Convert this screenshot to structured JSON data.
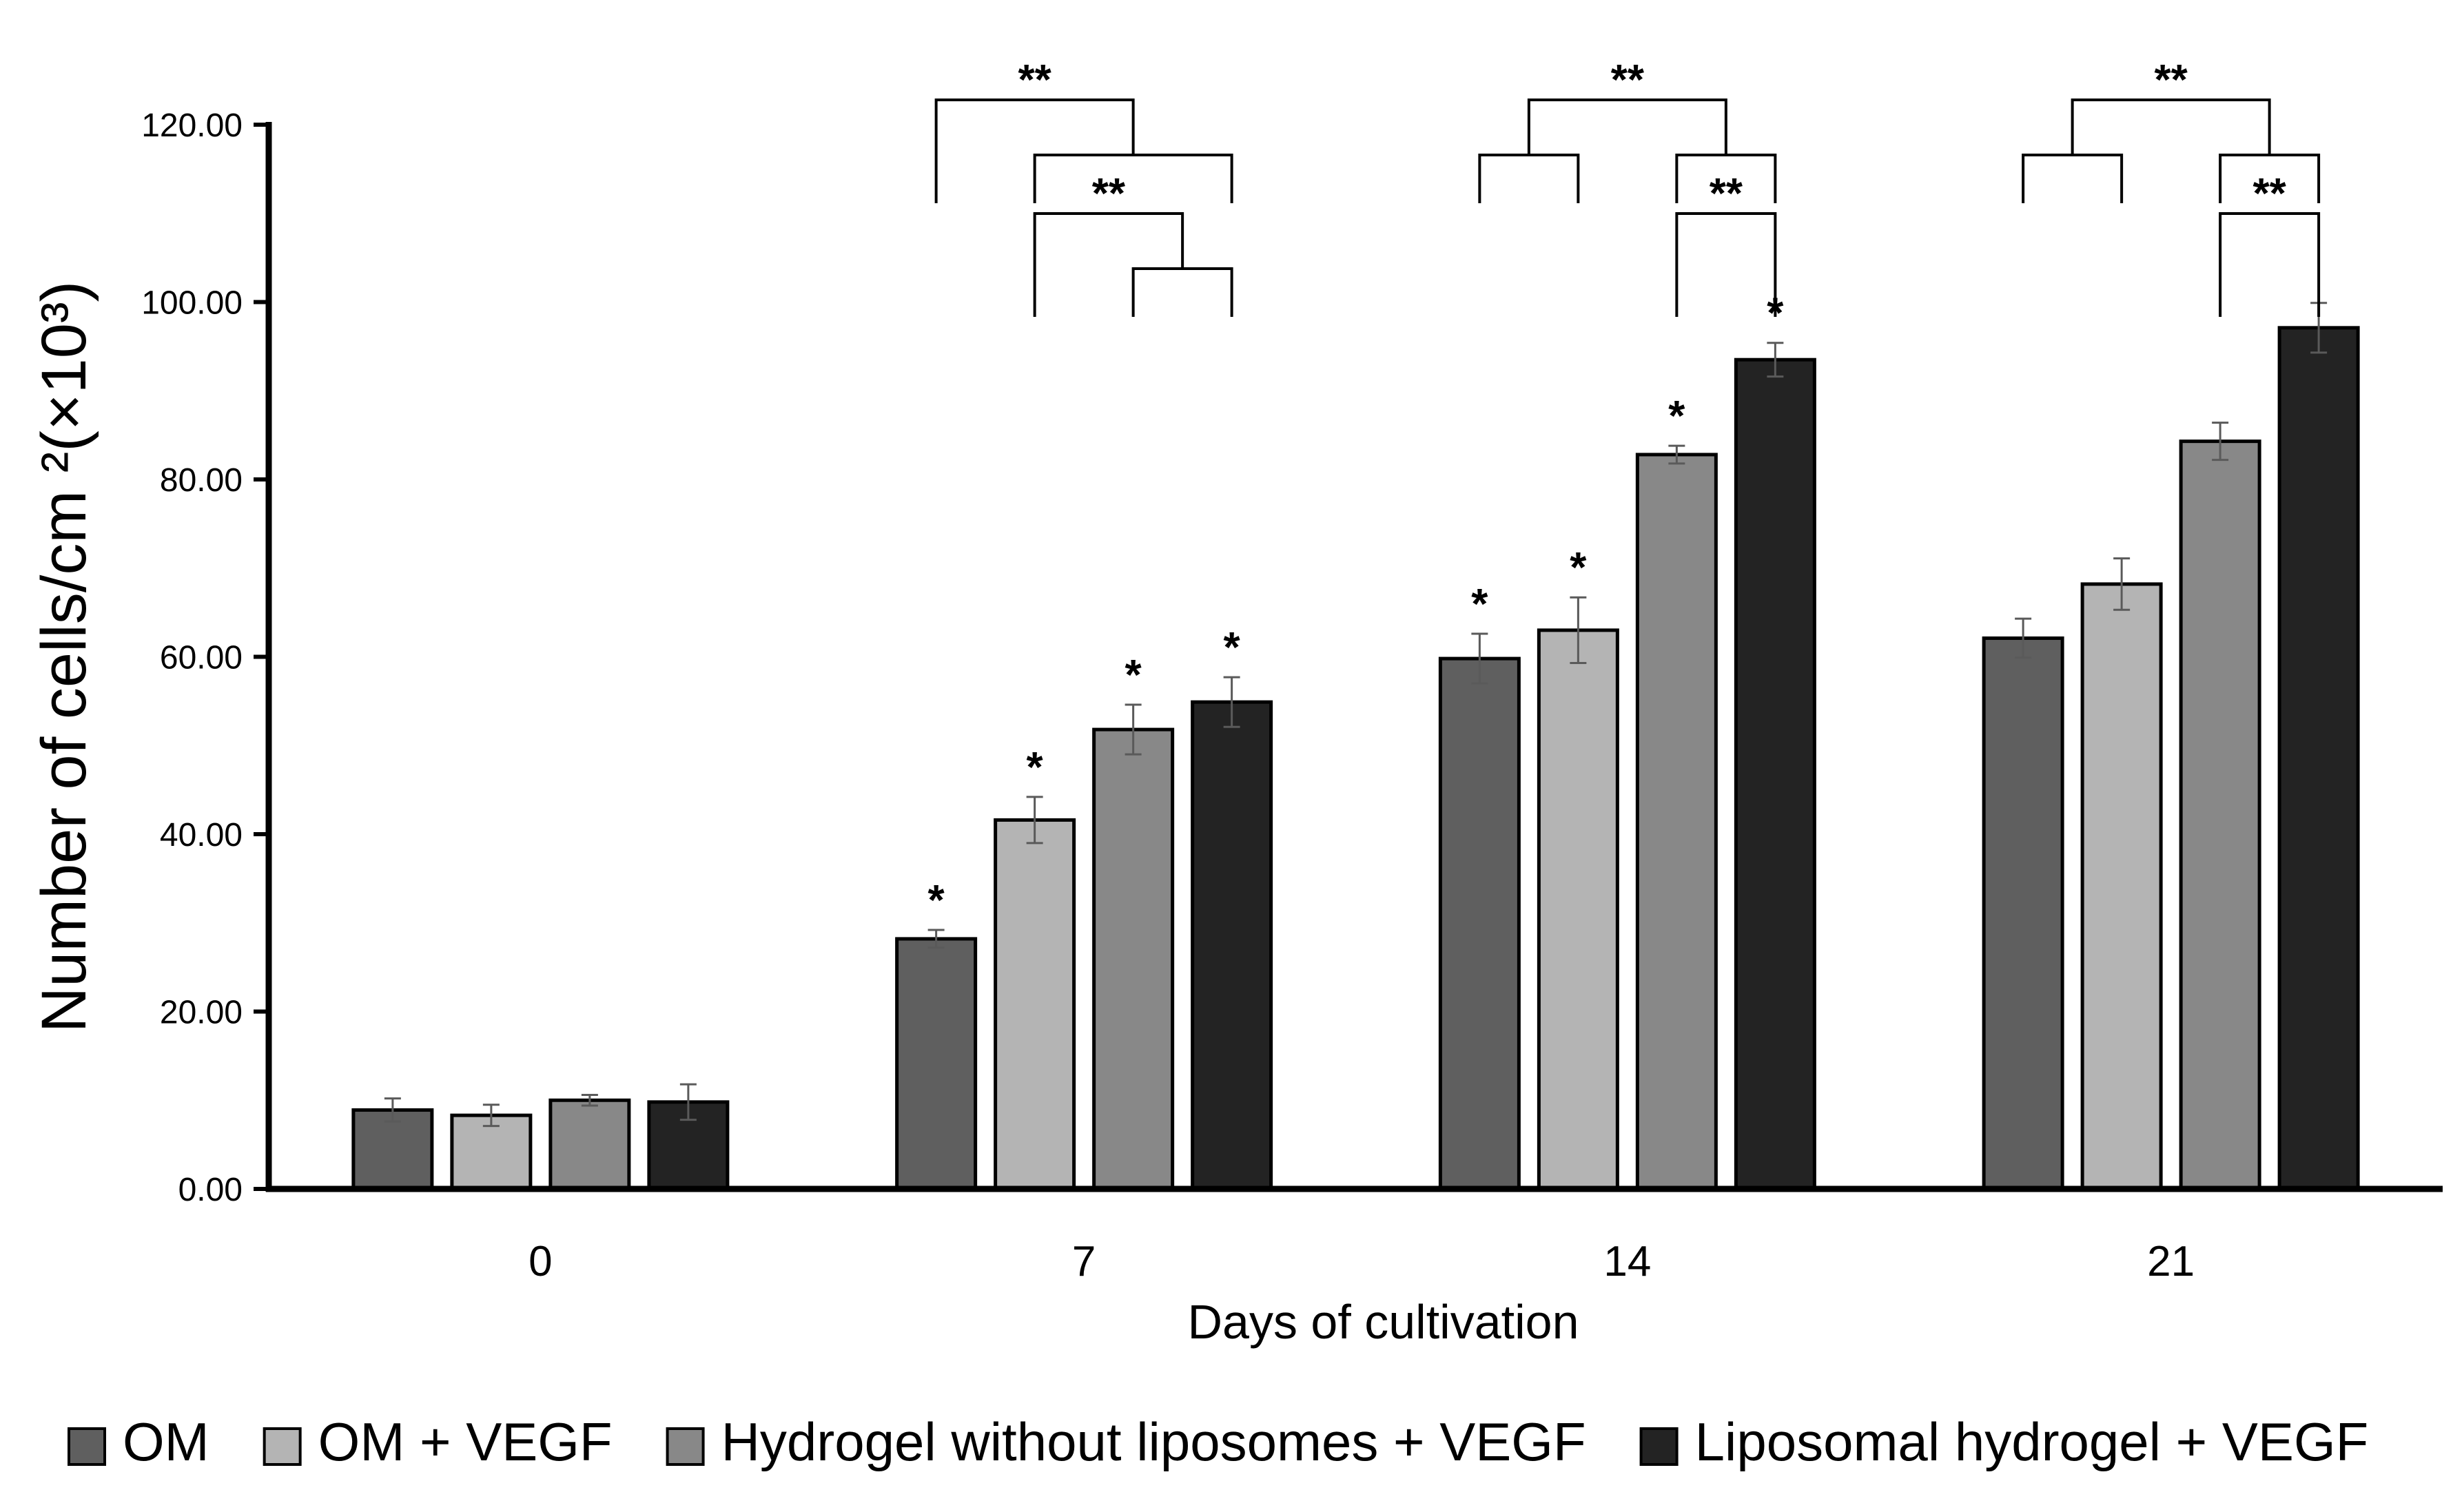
{
  "chart_data": {
    "type": "bar",
    "categories": [
      "0",
      "7",
      "14",
      "21"
    ],
    "series": [
      {
        "name": "OM",
        "color": "#5f5f5f",
        "values": [
          8.9,
          28.2,
          59.8,
          62.1
        ],
        "errors": [
          1.3,
          1.0,
          2.8,
          2.2
        ]
      },
      {
        "name": "OM + VEGF",
        "color": "#b4b4b4",
        "values": [
          8.3,
          41.6,
          63.0,
          68.2
        ],
        "errors": [
          1.2,
          2.6,
          3.7,
          2.9
        ]
      },
      {
        "name": "Hydrogel without liposomes + VEGF",
        "color": "#888888",
        "values": [
          10.0,
          51.8,
          82.8,
          84.3
        ],
        "errors": [
          0.6,
          2.8,
          1.0,
          2.1
        ]
      },
      {
        "name": "Liposomal hydrogel + VEGF",
        "color": "#232323",
        "values": [
          9.8,
          54.9,
          93.5,
          97.1
        ],
        "errors": [
          2.0,
          2.8,
          1.9,
          2.8
        ]
      }
    ],
    "ylim": [
      0,
      120
    ],
    "yticks": [
      "0.00",
      "20.00",
      "40.00",
      "60.00",
      "80.00",
      "100.00",
      "120.00"
    ],
    "xlabel": "Days of cultivation",
    "ylabel": "Number of cells/cm ²(×10³)",
    "grid": false,
    "legend_position": "bottom",
    "single_markers": [
      {
        "category": 1,
        "series": 0,
        "text": "*"
      },
      {
        "category": 1,
        "series": 1,
        "text": "*"
      },
      {
        "category": 1,
        "series": 2,
        "text": "*"
      },
      {
        "category": 1,
        "series": 3,
        "text": "*"
      },
      {
        "category": 2,
        "series": 0,
        "text": "*"
      },
      {
        "category": 2,
        "series": 1,
        "text": "*"
      },
      {
        "category": 2,
        "series": 2,
        "text": "*"
      },
      {
        "category": 2,
        "series": 3,
        "text": "*"
      }
    ],
    "comparison_markers": [
      {
        "category": 1,
        "groups": [
          [
            0
          ],
          [
            1,
            3
          ]
        ],
        "text": "**"
      },
      {
        "category": 1,
        "groups": [
          [
            1
          ],
          [
            2,
            3
          ]
        ],
        "text": "**"
      },
      {
        "category": 2,
        "groups": [
          [
            0,
            1
          ],
          [
            2,
            3
          ]
        ],
        "text": "**"
      },
      {
        "category": 2,
        "groups": [
          [
            2
          ],
          [
            3
          ]
        ],
        "text": "**"
      },
      {
        "category": 3,
        "groups": [
          [
            0,
            1
          ],
          [
            2,
            3
          ]
        ],
        "text": "**"
      },
      {
        "category": 3,
        "groups": [
          [
            2
          ],
          [
            3
          ]
        ],
        "text": "**"
      }
    ]
  }
}
